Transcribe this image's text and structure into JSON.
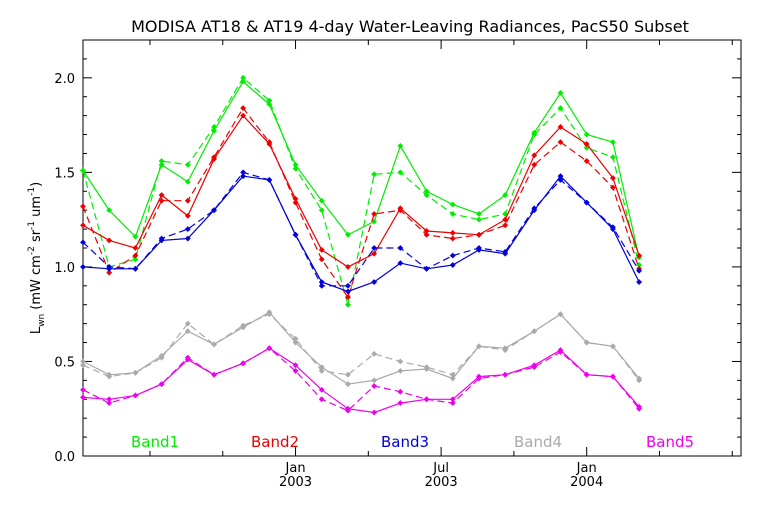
{
  "chart_data": {
    "type": "line",
    "title": "MODISA AT18 & AT19 4-day Water-Leaving Radiances, PacS50 Subset",
    "ylabel_parts": [
      "L",
      "wn",
      " (mW cm",
      "-2",
      " sr",
      "-1",
      " um",
      "-1",
      ")"
    ],
    "ylim": [
      0.0,
      2.2
    ],
    "yticks": [
      0.0,
      0.5,
      1.0,
      1.5,
      2.0
    ],
    "ytick_labels": [
      "0.0",
      "0.5",
      "1.0",
      "1.5",
      "2.0"
    ],
    "xlim": [
      2002.27,
      2004.53
    ],
    "xtick_labels": [
      {
        "x": 2003.0,
        "line1": "Jan",
        "line2": "2003"
      },
      {
        "x": 2003.5,
        "line1": "Jul",
        "line2": "2003"
      },
      {
        "x": 2004.0,
        "line1": "Jan",
        "line2": "2004"
      }
    ],
    "minor_ticks_x": [
      2002.5,
      2002.75,
      2003.25,
      2003.75,
      2004.25,
      2004.5
    ],
    "grid": false,
    "legend_position": "bottom",
    "series_note": "solid = AT18, dashed = AT19",
    "colors": {
      "Band1": "#00ee00",
      "Band2": "#ee0000",
      "Band3": "#0000dd",
      "Band4": "#aaaaaa",
      "Band5": "#ee00ee"
    },
    "x": [
      2002.27,
      2002.36,
      2002.45,
      2002.54,
      2002.63,
      2002.72,
      2002.82,
      2002.91,
      2003.0,
      2003.09,
      2003.18,
      2003.27,
      2003.36,
      2003.45,
      2003.54,
      2003.63,
      2003.72,
      2003.82,
      2003.91,
      2004.0,
      2004.09,
      2004.18,
      2004.27
    ],
    "series": [
      {
        "name": "Band1",
        "style": "solid",
        "values": [
          1.51,
          1.3,
          1.16,
          1.54,
          1.45,
          1.72,
          1.98,
          1.86,
          1.54,
          1.35,
          1.17,
          1.24,
          1.64,
          1.4,
          1.33,
          1.28,
          1.38,
          1.71,
          1.92,
          1.7,
          1.66,
          1.05,
          null
        ]
      },
      {
        "name": "Band1",
        "style": "dashed",
        "values": [
          1.51,
          1.0,
          1.04,
          1.56,
          1.54,
          1.74,
          2.0,
          1.88,
          1.52,
          1.3,
          0.8,
          1.49,
          1.5,
          1.38,
          1.28,
          1.25,
          1.28,
          1.7,
          1.84,
          1.63,
          1.58,
          1.01,
          null
        ]
      },
      {
        "name": "Band2",
        "style": "solid",
        "values": [
          1.22,
          1.14,
          1.1,
          1.38,
          1.27,
          1.57,
          1.8,
          1.65,
          1.36,
          1.09,
          1.0,
          1.07,
          1.31,
          1.19,
          1.18,
          1.17,
          1.25,
          1.59,
          1.74,
          1.65,
          1.47,
          1.06,
          null
        ]
      },
      {
        "name": "Band2",
        "style": "dashed",
        "values": [
          1.32,
          0.97,
          1.06,
          1.35,
          1.35,
          1.58,
          1.84,
          1.66,
          1.34,
          1.04,
          0.84,
          1.28,
          1.3,
          1.17,
          1.15,
          1.17,
          1.22,
          1.54,
          1.66,
          1.56,
          1.42,
          0.99,
          null
        ]
      },
      {
        "name": "Band3",
        "style": "solid",
        "values": [
          1.0,
          0.99,
          0.99,
          1.14,
          1.15,
          1.3,
          1.48,
          1.46,
          1.17,
          0.92,
          0.87,
          0.92,
          1.02,
          0.99,
          1.01,
          1.09,
          1.07,
          1.3,
          1.48,
          1.34,
          1.2,
          0.92,
          null
        ]
      },
      {
        "name": "Band3",
        "style": "dashed",
        "values": [
          1.13,
          1.0,
          0.99,
          1.15,
          1.2,
          1.3,
          1.5,
          1.46,
          1.17,
          0.9,
          0.9,
          1.1,
          1.1,
          0.99,
          1.06,
          1.1,
          1.08,
          1.31,
          1.46,
          1.34,
          1.21,
          0.98,
          null
        ]
      },
      {
        "name": "Band4",
        "style": "solid",
        "values": [
          0.5,
          0.43,
          0.44,
          0.53,
          0.66,
          0.59,
          0.68,
          0.76,
          0.6,
          0.47,
          0.38,
          0.4,
          0.45,
          0.46,
          0.41,
          0.58,
          0.57,
          0.66,
          0.75,
          0.6,
          0.58,
          0.41,
          null
        ]
      },
      {
        "name": "Band4",
        "style": "dashed",
        "values": [
          0.48,
          0.42,
          0.44,
          0.52,
          0.7,
          0.59,
          0.69,
          0.75,
          0.62,
          0.45,
          0.43,
          0.54,
          0.5,
          0.47,
          0.43,
          0.58,
          0.56,
          0.66,
          0.75,
          0.6,
          0.58,
          0.4,
          null
        ]
      },
      {
        "name": "Band5",
        "style": "solid",
        "values": [
          0.31,
          0.3,
          0.32,
          0.38,
          0.51,
          0.43,
          0.49,
          0.57,
          0.48,
          0.35,
          0.25,
          0.23,
          0.28,
          0.3,
          0.3,
          0.42,
          0.43,
          0.48,
          0.56,
          0.43,
          0.42,
          0.26,
          null
        ]
      },
      {
        "name": "Band5",
        "style": "dashed",
        "values": [
          0.35,
          0.28,
          0.32,
          0.38,
          0.52,
          0.43,
          0.49,
          0.57,
          0.45,
          0.3,
          0.24,
          0.37,
          0.34,
          0.3,
          0.28,
          0.41,
          0.43,
          0.47,
          0.55,
          0.43,
          0.42,
          0.25,
          null
        ]
      }
    ],
    "legend": [
      {
        "label": "Band1",
        "color": "#00ee00"
      },
      {
        "label": "Band2",
        "color": "#ee0000"
      },
      {
        "label": "Band3",
        "color": "#0000dd"
      },
      {
        "label": "Band4",
        "color": "#aaaaaa"
      },
      {
        "label": "Band5",
        "color": "#ee00ee"
      }
    ]
  }
}
